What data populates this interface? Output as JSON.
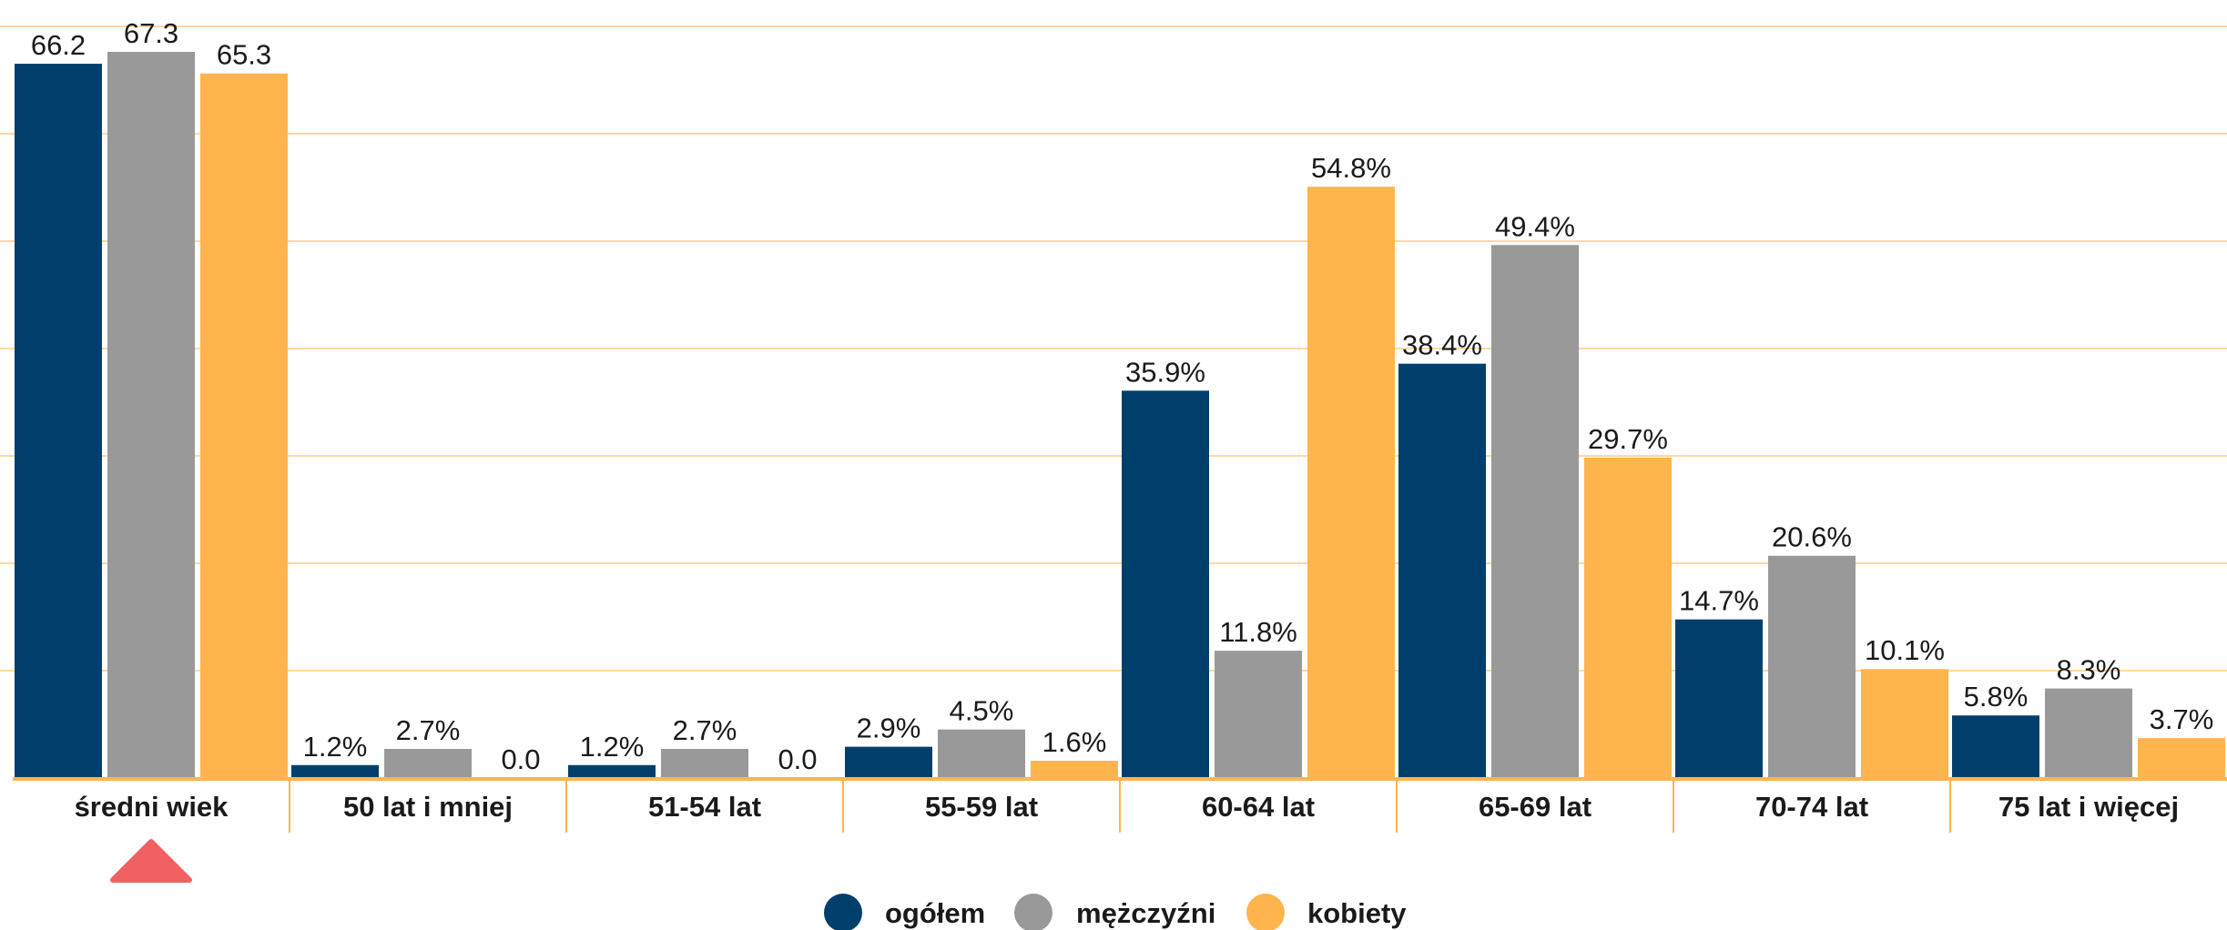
{
  "chart_data": {
    "type": "bar",
    "categories": [
      "średni wiek",
      "50 lat i mniej",
      "51-54 lat",
      "55-59 lat",
      "60-64 lat",
      "65-69 lat",
      "70-74 lat",
      "75 lat i więcej"
    ],
    "series": [
      {
        "name": "ogółem",
        "color": "#003f6b",
        "values": [
          66.2,
          1.2,
          1.2,
          2.9,
          35.9,
          38.4,
          14.7,
          5.8
        ],
        "labels": [
          "66.2",
          "1.2%",
          "1.2%",
          "2.9%",
          "35.9%",
          "38.4%",
          "14.7%",
          "5.8%"
        ]
      },
      {
        "name": "mężczyźni",
        "color": "#999999",
        "values": [
          67.3,
          2.7,
          2.7,
          4.5,
          11.8,
          49.4,
          20.6,
          8.3
        ],
        "labels": [
          "67.3",
          "2.7%",
          "2.7%",
          "4.5%",
          "11.8%",
          "49.4%",
          "20.6%",
          "8.3%"
        ]
      },
      {
        "name": "kobiety",
        "color": "#ffb44d",
        "values": [
          65.3,
          0.0,
          0.0,
          1.6,
          54.8,
          29.7,
          10.1,
          3.7
        ],
        "labels": [
          "65.3",
          "0.0",
          "0.0",
          "1.6%",
          "54.8%",
          "29.7%",
          "10.1%",
          "3.7%"
        ]
      }
    ],
    "ylim": [
      0,
      70
    ],
    "grid": true,
    "gridColor": "#ffd9a3",
    "axisColor": "#ffb44d",
    "markerColor": "#f06262",
    "legend": "bottom-center"
  }
}
